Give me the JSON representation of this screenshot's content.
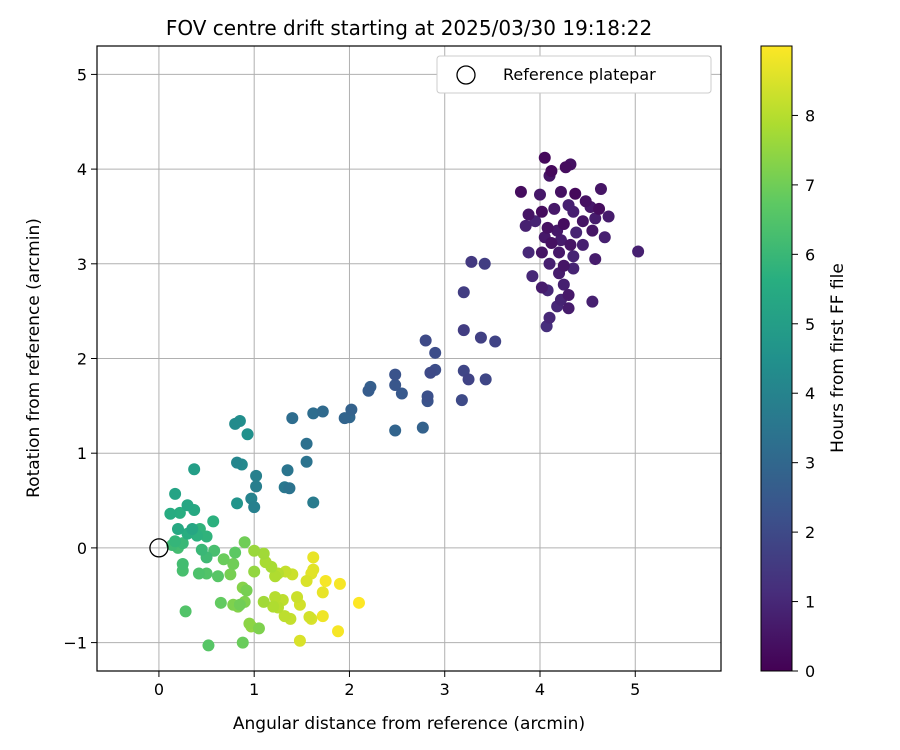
{
  "chart_data": {
    "type": "scatter",
    "title": "FOV centre drift starting at 2025/03/30 19:18:22",
    "xlabel": "Angular distance from reference (arcmin)",
    "ylabel": "Rotation from reference (arcmin)",
    "xlim": [
      -0.65,
      5.9
    ],
    "ylim": [
      -1.3,
      5.3
    ],
    "xticks": [
      0,
      1,
      2,
      3,
      4,
      5
    ],
    "yticks": [
      -1,
      0,
      1,
      2,
      3,
      4,
      5
    ],
    "xtick_labels": [
      "0",
      "1",
      "2",
      "3",
      "4",
      "5"
    ],
    "ytick_labels": [
      "−1",
      "0",
      "1",
      "2",
      "3",
      "4",
      "5"
    ],
    "grid": true,
    "legend": {
      "placement": "top-right",
      "entries": [
        "Reference platepar"
      ]
    },
    "reference_point": {
      "x": 0,
      "y": 0,
      "label": "Reference platepar"
    },
    "colorbar": {
      "label": "Hours from first FF file",
      "colormap": "viridis",
      "range": [
        0,
        9
      ],
      "ticks": [
        0,
        1,
        2,
        3,
        4,
        5,
        6,
        7,
        8
      ],
      "tick_labels": [
        "0",
        "1",
        "2",
        "3",
        "4",
        "5",
        "6",
        "7",
        "8"
      ]
    },
    "points": [
      [
        4.05,
        4.12,
        0.2
      ],
      [
        4.27,
        4.02,
        0.3
      ],
      [
        4.32,
        4.05,
        0.4
      ],
      [
        4.12,
        3.98,
        0.2
      ],
      [
        4.1,
        3.93,
        0.5
      ],
      [
        3.8,
        3.76,
        0.3
      ],
      [
        4.0,
        3.73,
        0.6
      ],
      [
        4.22,
        3.76,
        0.4
      ],
      [
        4.37,
        3.74,
        0.2
      ],
      [
        4.64,
        3.79,
        0.5
      ],
      [
        4.3,
        3.62,
        0.8
      ],
      [
        4.48,
        3.66,
        0.4
      ],
      [
        4.53,
        3.6,
        0.6
      ],
      [
        4.62,
        3.58,
        0.3
      ],
      [
        4.72,
        3.5,
        0.7
      ],
      [
        3.88,
        3.52,
        0.5
      ],
      [
        3.95,
        3.45,
        0.9
      ],
      [
        4.02,
        3.55,
        0.3
      ],
      [
        4.15,
        3.58,
        0.6
      ],
      [
        4.35,
        3.55,
        0.8
      ],
      [
        4.45,
        3.45,
        0.5
      ],
      [
        4.58,
        3.48,
        0.7
      ],
      [
        3.85,
        3.4,
        0.8
      ],
      [
        4.08,
        3.38,
        0.4
      ],
      [
        4.18,
        3.35,
        0.6
      ],
      [
        4.25,
        3.42,
        0.3
      ],
      [
        4.38,
        3.33,
        0.9
      ],
      [
        4.55,
        3.35,
        0.5
      ],
      [
        4.68,
        3.28,
        0.8
      ],
      [
        4.05,
        3.28,
        0.6
      ],
      [
        4.12,
        3.22,
        0.4
      ],
      [
        4.22,
        3.25,
        0.7
      ],
      [
        4.32,
        3.2,
        0.5
      ],
      [
        4.45,
        3.2,
        0.8
      ],
      [
        3.88,
        3.12,
        1.0
      ],
      [
        4.02,
        3.12,
        0.5
      ],
      [
        4.2,
        3.12,
        0.6
      ],
      [
        4.35,
        3.08,
        0.9
      ],
      [
        4.58,
        3.05,
        0.7
      ],
      [
        5.03,
        3.13,
        0.8
      ],
      [
        4.1,
        3.0,
        0.8
      ],
      [
        4.25,
        2.98,
        0.5
      ],
      [
        4.35,
        2.95,
        0.9
      ],
      [
        3.92,
        2.87,
        1.0
      ],
      [
        4.2,
        2.9,
        0.7
      ],
      [
        4.02,
        2.75,
        0.7
      ],
      [
        4.08,
        2.72,
        1.0
      ],
      [
        4.25,
        2.78,
        0.8
      ],
      [
        4.3,
        2.67,
        0.6
      ],
      [
        4.22,
        2.62,
        0.9
      ],
      [
        4.3,
        2.53,
        0.7
      ],
      [
        4.18,
        2.55,
        1.0
      ],
      [
        4.55,
        2.6,
        0.8
      ],
      [
        4.1,
        2.43,
        1.0
      ],
      [
        4.07,
        2.34,
        1.2
      ],
      [
        3.28,
        3.02,
        1.5
      ],
      [
        3.42,
        3.0,
        1.6
      ],
      [
        3.2,
        2.7,
        1.6
      ],
      [
        3.2,
        2.3,
        1.6
      ],
      [
        3.38,
        2.22,
        1.7
      ],
      [
        3.53,
        2.18,
        1.8
      ],
      [
        2.8,
        2.19,
        2.0
      ],
      [
        2.9,
        2.06,
        2.1
      ],
      [
        2.9,
        1.88,
        2.1
      ],
      [
        2.85,
        1.85,
        2.0
      ],
      [
        3.2,
        1.87,
        1.9
      ],
      [
        3.25,
        1.78,
        1.8
      ],
      [
        3.43,
        1.78,
        1.9
      ],
      [
        3.18,
        1.56,
        2.0
      ],
      [
        2.82,
        1.6,
        2.2
      ],
      [
        2.82,
        1.55,
        2.3
      ],
      [
        2.48,
        1.83,
        2.3
      ],
      [
        2.48,
        1.72,
        2.4
      ],
      [
        2.55,
        1.63,
        2.5
      ],
      [
        2.2,
        1.66,
        2.6
      ],
      [
        2.22,
        1.7,
        2.7
      ],
      [
        2.02,
        1.46,
        2.8
      ],
      [
        1.95,
        1.37,
        2.9
      ],
      [
        2.0,
        1.38,
        3.0
      ],
      [
        2.48,
        1.24,
        2.9
      ],
      [
        2.77,
        1.27,
        2.8
      ],
      [
        1.72,
        1.44,
        3.1
      ],
      [
        1.62,
        1.42,
        3.2
      ],
      [
        1.4,
        1.37,
        3.2
      ],
      [
        1.55,
        1.1,
        3.3
      ],
      [
        1.55,
        0.91,
        3.4
      ],
      [
        1.35,
        0.82,
        3.5
      ],
      [
        1.32,
        0.64,
        3.6
      ],
      [
        1.37,
        0.63,
        3.4
      ],
      [
        1.62,
        0.48,
        3.7
      ],
      [
        1.02,
        0.76,
        3.9
      ],
      [
        1.02,
        0.65,
        3.8
      ],
      [
        0.97,
        0.52,
        4.0
      ],
      [
        1.0,
        0.43,
        3.9
      ],
      [
        0.82,
        0.9,
        4.1
      ],
      [
        0.87,
        0.88,
        4.2
      ],
      [
        0.8,
        1.31,
        4.3
      ],
      [
        0.85,
        1.34,
        4.4
      ],
      [
        0.93,
        1.2,
        4.5
      ],
      [
        0.82,
        0.47,
        4.6
      ],
      [
        0.37,
        0.83,
        5.0
      ],
      [
        0.17,
        0.57,
        5.2
      ],
      [
        0.3,
        0.45,
        5.3
      ],
      [
        0.37,
        0.4,
        5.4
      ],
      [
        0.12,
        0.36,
        5.5
      ],
      [
        0.22,
        0.37,
        5.6
      ],
      [
        0.57,
        0.28,
        5.7
      ],
      [
        0.43,
        0.2,
        5.8
      ],
      [
        0.35,
        0.2,
        5.3
      ],
      [
        0.2,
        0.2,
        5.4
      ],
      [
        0.3,
        0.15,
        5.6
      ],
      [
        0.4,
        0.13,
        5.7
      ],
      [
        0.5,
        0.12,
        5.8
      ],
      [
        0.25,
        0.05,
        6.0
      ],
      [
        0.17,
        0.07,
        5.9
      ],
      [
        0.14,
        0.03,
        6.1
      ],
      [
        0.2,
        0.0,
        6.2
      ],
      [
        0.45,
        -0.02,
        6.0
      ],
      [
        0.5,
        -0.1,
        6.1
      ],
      [
        0.58,
        -0.03,
        6.3
      ],
      [
        0.25,
        -0.17,
        6.2
      ],
      [
        0.25,
        -0.24,
        6.3
      ],
      [
        0.42,
        -0.27,
        6.4
      ],
      [
        0.5,
        -0.27,
        6.5
      ],
      [
        0.62,
        -0.3,
        6.6
      ],
      [
        0.28,
        -0.67,
        6.5
      ],
      [
        0.52,
        -1.03,
        6.6
      ],
      [
        0.65,
        -0.58,
        6.8
      ],
      [
        0.68,
        -0.12,
        6.9
      ],
      [
        0.8,
        -0.05,
        6.7
      ],
      [
        0.78,
        -0.17,
        7.0
      ],
      [
        0.75,
        -0.28,
        7.1
      ],
      [
        0.85,
        -0.6,
        7.0
      ],
      [
        0.9,
        -0.57,
        7.2
      ],
      [
        0.9,
        0.06,
        7.0
      ],
      [
        0.88,
        -0.42,
        7.3
      ],
      [
        0.92,
        -0.45,
        7.1
      ],
      [
        0.78,
        -0.6,
        7.2
      ],
      [
        0.83,
        -0.62,
        7.3
      ],
      [
        0.88,
        -1.0,
        6.9
      ],
      [
        0.95,
        -0.8,
        7.4
      ],
      [
        0.97,
        -0.83,
        7.5
      ],
      [
        1.05,
        -0.85,
        7.2
      ],
      [
        1.0,
        -0.25,
        7.5
      ],
      [
        1.0,
        -0.03,
        7.6
      ],
      [
        1.1,
        -0.06,
        7.7
      ],
      [
        1.12,
        -0.15,
        7.8
      ],
      [
        1.1,
        -0.57,
        7.7
      ],
      [
        1.18,
        -0.2,
        7.8
      ],
      [
        1.22,
        -0.3,
        7.9
      ],
      [
        1.2,
        -0.62,
        7.9
      ],
      [
        1.22,
        -0.52,
        8.0
      ],
      [
        1.25,
        -0.63,
        8.0
      ],
      [
        1.3,
        -0.55,
        8.1
      ],
      [
        1.32,
        -0.72,
        8.1
      ],
      [
        1.38,
        -0.75,
        8.2
      ],
      [
        1.33,
        -0.25,
        8.2
      ],
      [
        1.4,
        -0.28,
        8.3
      ],
      [
        1.45,
        -0.52,
        8.3
      ],
      [
        1.48,
        -0.6,
        8.4
      ],
      [
        1.58,
        -0.73,
        8.4
      ],
      [
        1.6,
        -0.75,
        8.5
      ],
      [
        1.55,
        -0.35,
        8.5
      ],
      [
        1.6,
        -0.27,
        8.6
      ],
      [
        1.62,
        -0.1,
        8.7
      ],
      [
        1.62,
        -0.23,
        8.6
      ],
      [
        1.72,
        -0.47,
        8.7
      ],
      [
        1.72,
        -0.72,
        8.8
      ],
      [
        1.75,
        -0.35,
        8.9
      ],
      [
        1.9,
        -0.38,
        8.9
      ],
      [
        1.88,
        -0.88,
        8.9
      ],
      [
        2.1,
        -0.58,
        9.0
      ],
      [
        1.48,
        -0.98,
        8.5
      ],
      [
        1.25,
        -0.27,
        8.0
      ]
    ]
  }
}
